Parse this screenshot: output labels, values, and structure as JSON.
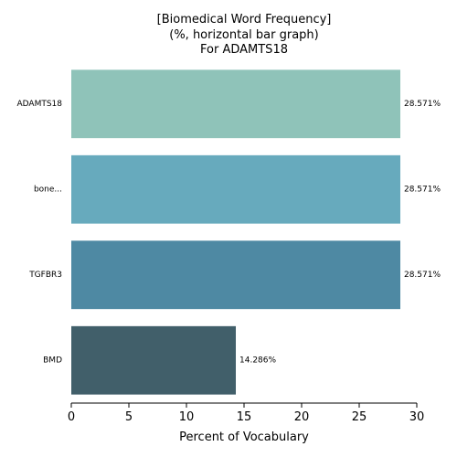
{
  "chart_data": {
    "type": "bar",
    "orientation": "horizontal",
    "title_lines": [
      "[Biomedical Word Frequency]",
      "(%, horizontal bar graph)",
      "For ADAMTS18"
    ],
    "categories": [
      "ADAMTS18",
      "bone...",
      "TGFBR3",
      "BMD"
    ],
    "values": [
      28.571,
      28.571,
      28.571,
      14.286
    ],
    "value_labels": [
      "28.571%",
      "28.571%",
      "28.571%",
      "14.286%"
    ],
    "colors": [
      "#8fc3b9",
      "#67aabd",
      "#4e89a3",
      "#415f6a"
    ],
    "xlabel": "Percent of Vocabulary",
    "ylabel": "",
    "xlim": [
      0,
      30
    ],
    "xticks": [
      0,
      5,
      10,
      15,
      20,
      25,
      30
    ],
    "grid": false,
    "legend": "none"
  }
}
